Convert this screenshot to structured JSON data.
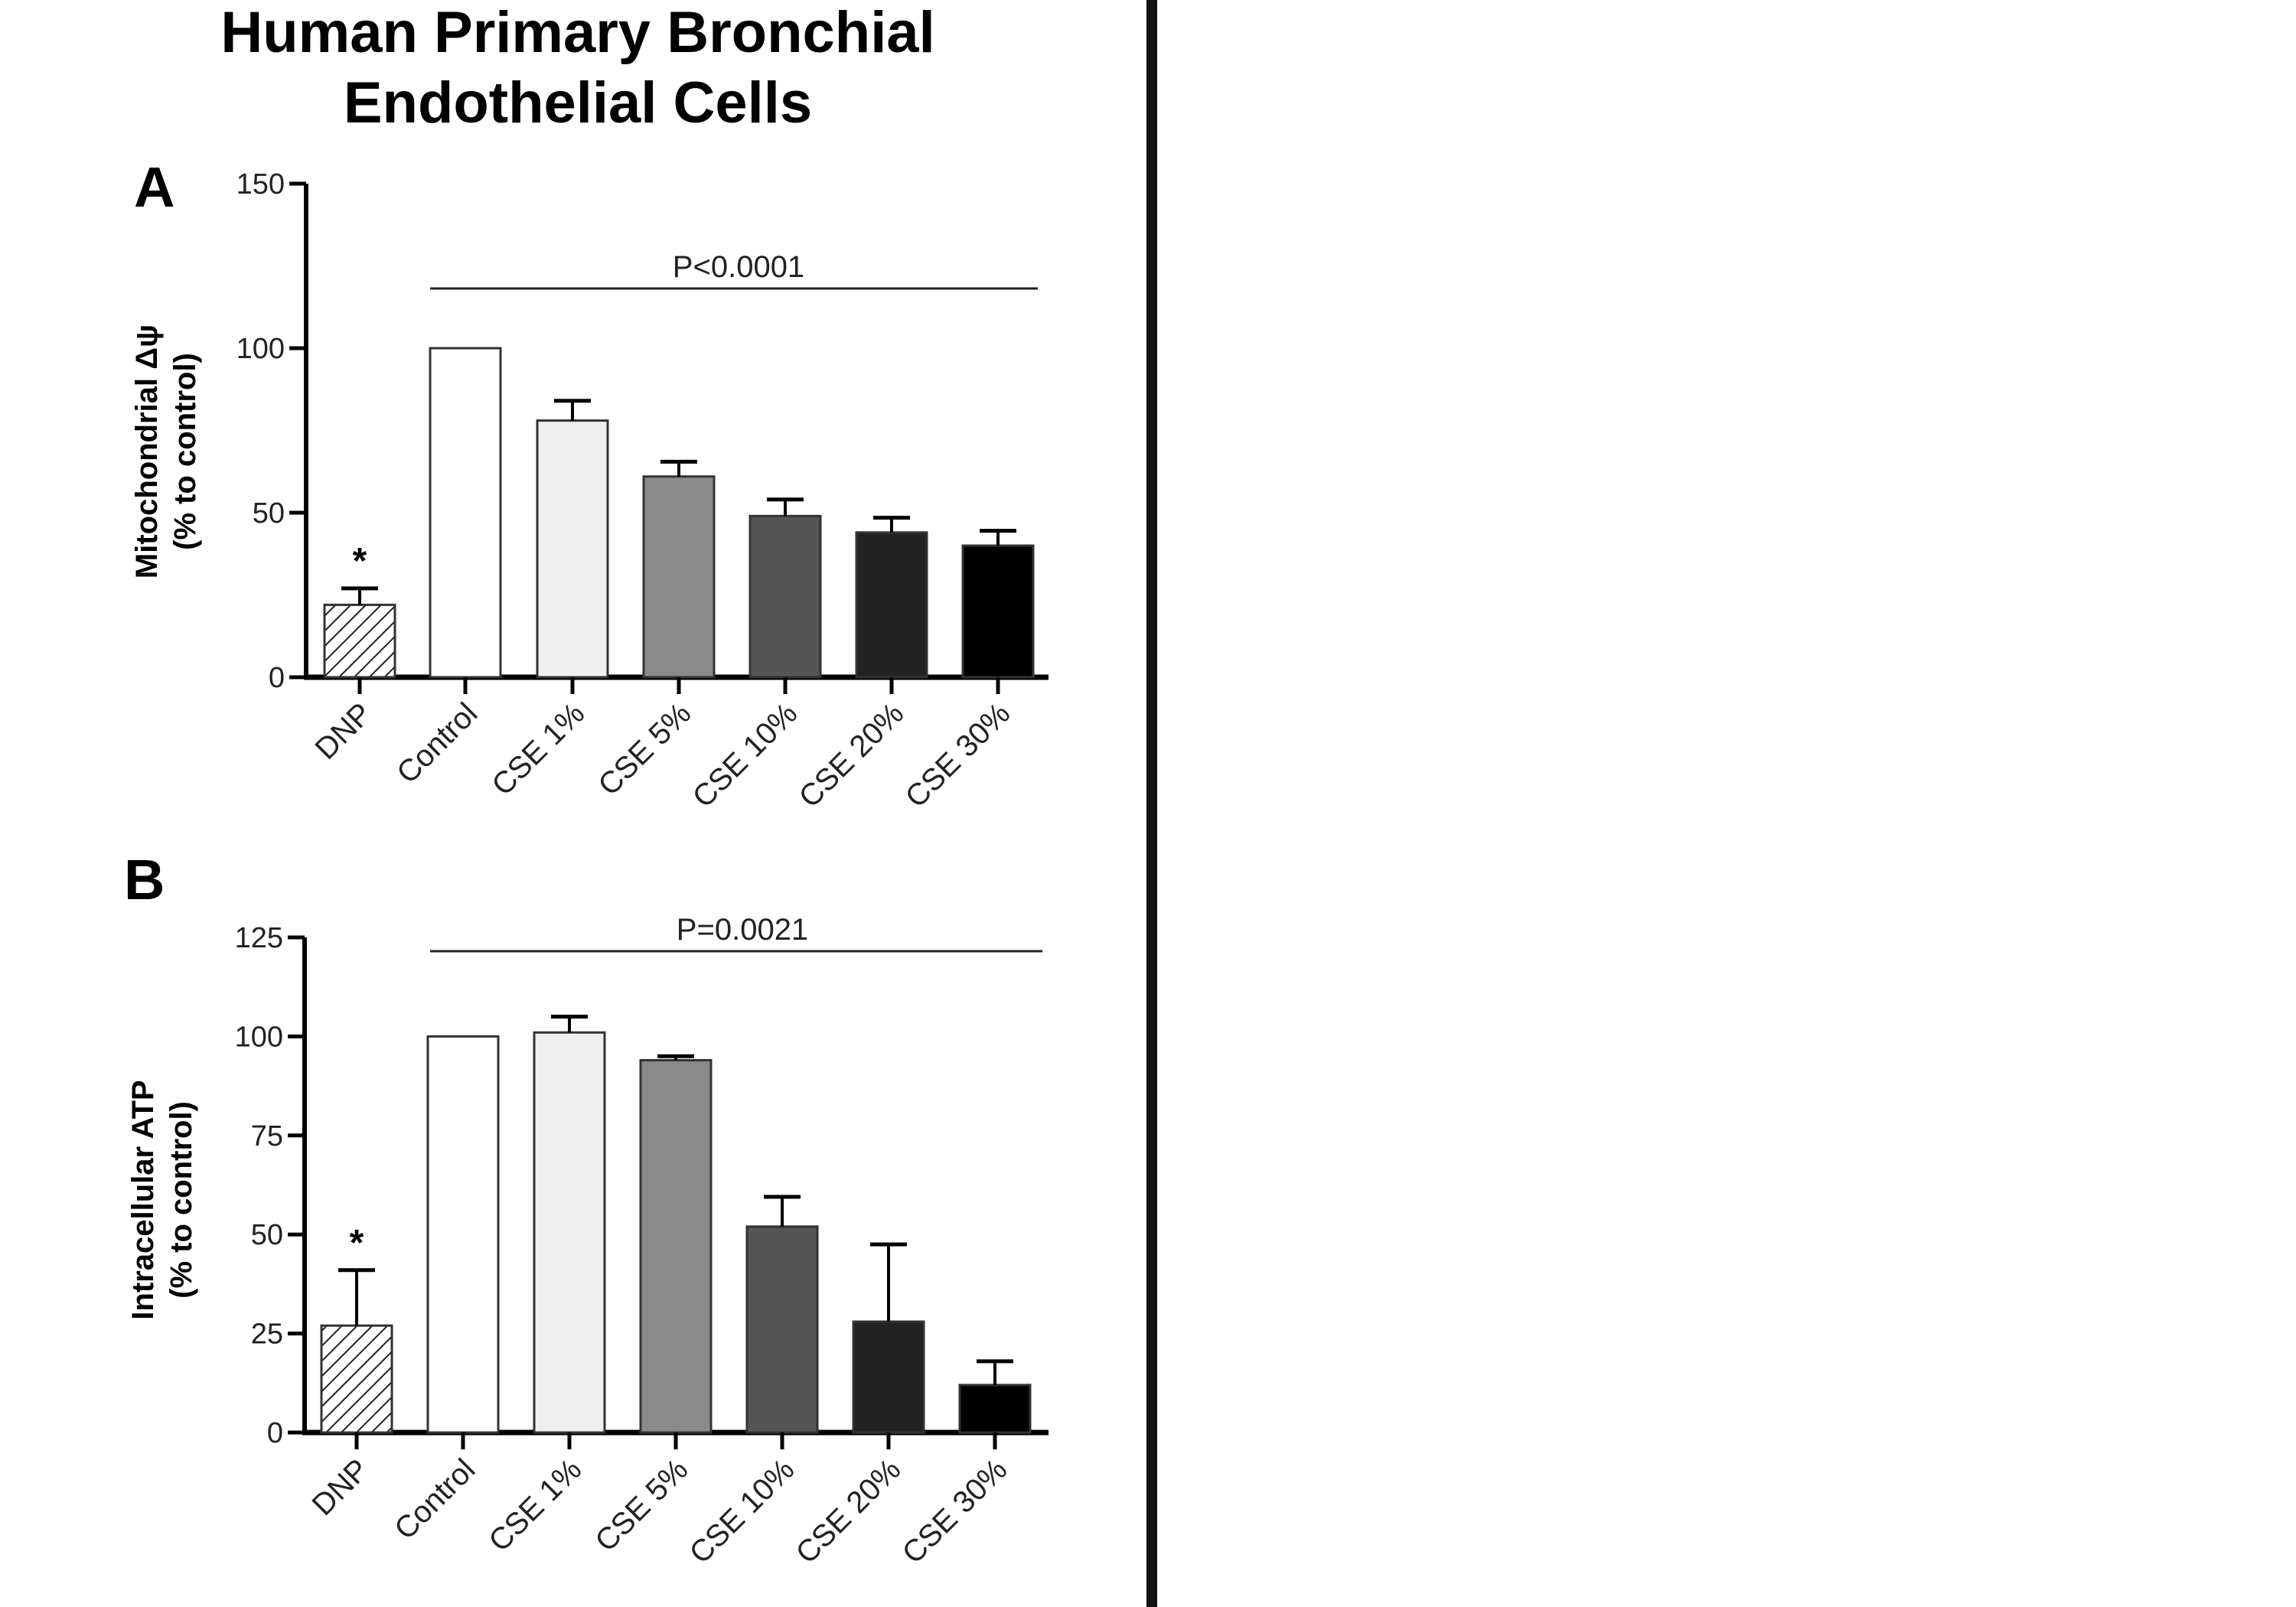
{
  "figure": {
    "title_line1": "Human Primary Bronchial",
    "title_line2": "Endothelial Cells"
  },
  "chart_data": [
    {
      "panel": "A",
      "type": "bar",
      "categories": [
        "DNP",
        "Control",
        "CSE 1%",
        "CSE 5%",
        "CSE 10%",
        "CSE 20%",
        "CSE 30%"
      ],
      "values": [
        22,
        100,
        78,
        61,
        49,
        44,
        40
      ],
      "errors": [
        5,
        0,
        6,
        4.5,
        5,
        4.5,
        4.5
      ],
      "colors": [
        "hatch",
        "#ffffff",
        "#efefef",
        "#8a8a8a",
        "#555555",
        "#222222",
        "#000000"
      ],
      "ylabel_line1": "Mitochondrial Δψ",
      "ylabel_line2": "(% to control)",
      "ylim": [
        0,
        150
      ],
      "yticks": [
        "0",
        "50",
        "100",
        "150"
      ],
      "annotation": "P<0.0001",
      "significance_marker": "*",
      "grid": false
    },
    {
      "panel": "B",
      "type": "bar",
      "categories": [
        "DNP",
        "Control",
        "CSE 1%",
        "CSE 5%",
        "CSE 10%",
        "CSE 20%",
        "CSE 30%"
      ],
      "values": [
        27,
        100,
        101,
        94,
        52,
        28,
        12
      ],
      "errors": [
        14,
        0,
        4,
        1,
        7.5,
        19.5,
        6
      ],
      "colors": [
        "hatch",
        "#ffffff",
        "#efefef",
        "#8a8a8a",
        "#555555",
        "#222222",
        "#000000"
      ],
      "ylabel_line1": "Intracellular ATP",
      "ylabel_line2": "(% to control)",
      "ylim": [
        0,
        125
      ],
      "yticks": [
        "0",
        "25",
        "50",
        "75",
        "100",
        "125"
      ],
      "annotation": "P=0.0021",
      "significance_marker": "*",
      "grid": false
    }
  ]
}
